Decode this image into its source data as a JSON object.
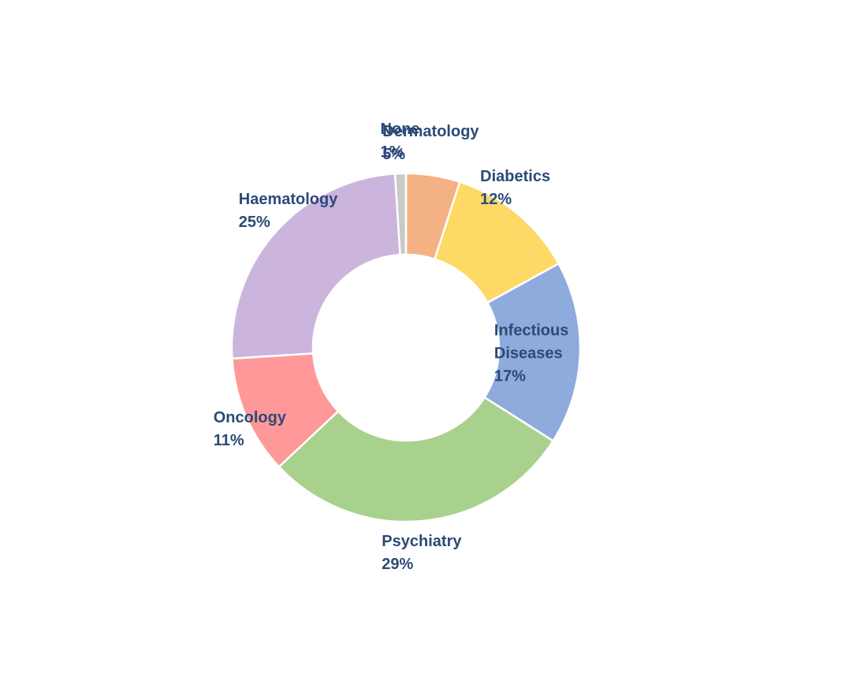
{
  "chart_data": {
    "type": "donut",
    "categories": [
      "Dermatology",
      "Diabetics",
      "Infectious Diseases",
      "Psychiatry",
      "Oncology",
      "Haematology",
      "None"
    ],
    "values": [
      5,
      12,
      17,
      29,
      11,
      25,
      1
    ],
    "value_labels": [
      "5%",
      "12%",
      "17%",
      "29%",
      "11%",
      "25%",
      "1%"
    ],
    "colors": [
      "#f4b183",
      "#ffd966",
      "#8faadc",
      "#a9d18e",
      "#ff9999",
      "#cbb5dd",
      "#c9c9c9"
    ]
  }
}
